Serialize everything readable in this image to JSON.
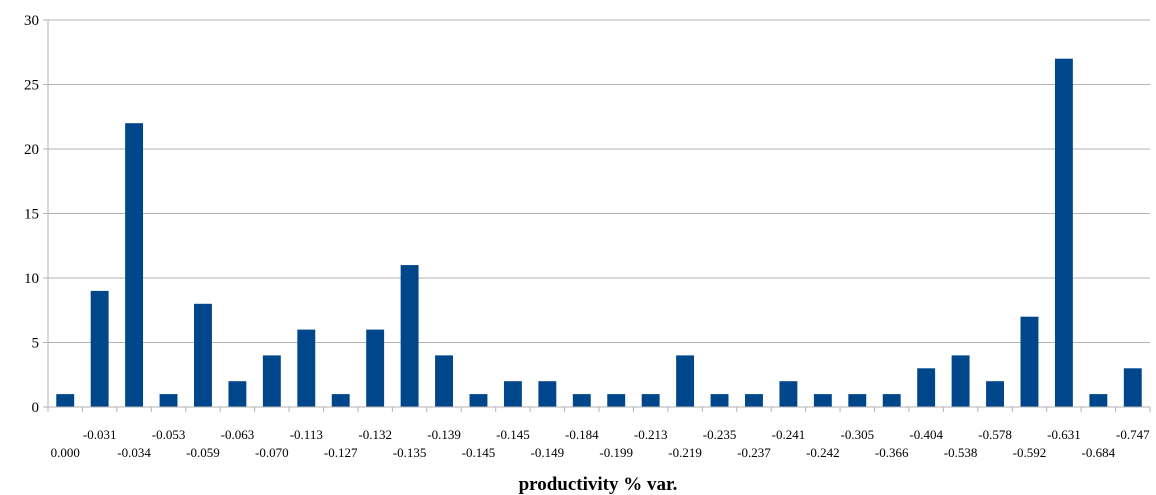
{
  "chart_data": {
    "type": "bar",
    "title": "",
    "xlabel": "productivity % var.",
    "ylabel": "",
    "ylim": [
      0,
      30
    ],
    "yticks": [
      "0",
      "5",
      "10",
      "15",
      "20",
      "25",
      "30"
    ],
    "grid": true,
    "bar_color": "#00468B",
    "categories": [
      "0.000",
      "-0.031",
      "-0.034",
      "-0.053",
      "-0.059",
      "-0.063",
      "-0.070",
      "-0.113",
      "-0.127",
      "-0.132",
      "-0.135",
      "-0.139",
      "-0.145",
      "-0.145",
      "-0.149",
      "-0.184",
      "-0.199",
      "-0.213",
      "-0.219",
      "-0.235",
      "-0.237",
      "-0.241",
      "-0.242",
      "-0.305",
      "-0.366",
      "-0.404",
      "-0.538",
      "-0.578",
      "-0.592",
      "-0.631",
      "-0.684",
      "-0.747"
    ],
    "values": [
      1,
      9,
      22,
      1,
      8,
      2,
      4,
      6,
      1,
      6,
      11,
      4,
      1,
      2,
      2,
      1,
      1,
      1,
      4,
      1,
      1,
      2,
      1,
      1,
      1,
      3,
      4,
      2,
      7,
      27,
      1,
      3
    ]
  }
}
